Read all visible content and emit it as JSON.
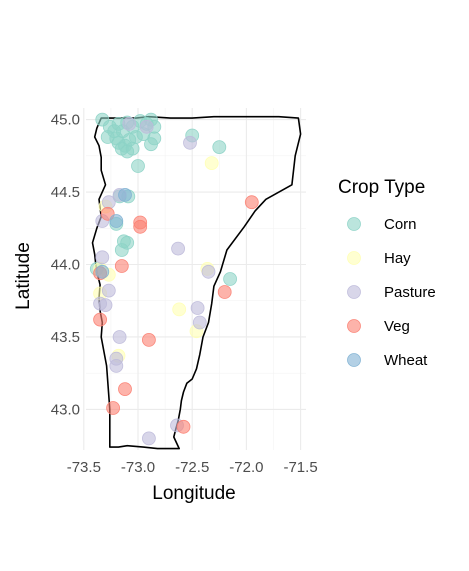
{
  "chart_data": {
    "type": "scatter",
    "title": "",
    "xlabel": "Longitude",
    "ylabel": "Latitude",
    "xlim": [
      -73.48,
      -71.45
    ],
    "ylim": [
      42.72,
      45.08
    ],
    "xticks": [
      -73.5,
      -73.0,
      -72.5,
      -72.0,
      -71.5
    ],
    "xtick_labels": [
      "-73.5",
      "-73.0",
      "-72.5",
      "-72.0",
      "-71.5"
    ],
    "yticks": [
      43.0,
      43.5,
      44.0,
      44.5,
      45.0
    ],
    "ytick_labels": [
      "43.0",
      "43.5",
      "44.0",
      "44.5",
      "45.0"
    ],
    "grid": true,
    "legend": {
      "title": "Crop Type",
      "position": "right"
    },
    "colors": {
      "Corn": "#8dd3c7",
      "Hay": "#ffffb3",
      "Pasture": "#bebada",
      "Veg": "#fb8072",
      "Wheat": "#80b1d3"
    },
    "boundary": {
      "lon": [
        -73.34,
        -73.26,
        -73.17,
        -73.12,
        -73.02,
        -72.9,
        -72.7,
        -72.5,
        -72.3,
        -72.0,
        -71.7,
        -71.52,
        -71.5,
        -71.55,
        -71.58,
        -71.82,
        -71.92,
        -72.02,
        -72.18,
        -72.24,
        -72.3,
        -72.32,
        -72.35,
        -72.4,
        -72.43,
        -72.46,
        -72.5,
        -72.55,
        -72.58,
        -72.6,
        -72.61,
        -72.63,
        -72.65,
        -72.67,
        -72.62,
        -72.7,
        -72.82,
        -72.95,
        -73.1,
        -73.18,
        -73.26,
        -73.26,
        -73.29,
        -73.34,
        -73.33,
        -73.35,
        -73.36,
        -73.35,
        -73.37,
        -73.39,
        -73.4,
        -73.42,
        -73.38,
        -73.34,
        -73.36,
        -73.3,
        -73.34,
        -73.34,
        -73.36,
        -73.4,
        -73.38,
        -73.34
      ],
      "lat": [
        45.01,
        45.01,
        45.01,
        45.01,
        45.01,
        45.02,
        45.01,
        45.01,
        45.02,
        45.02,
        45.02,
        45.01,
        44.9,
        44.75,
        44.55,
        44.45,
        44.37,
        44.26,
        44.1,
        43.95,
        43.85,
        43.73,
        43.6,
        43.5,
        43.38,
        43.28,
        43.21,
        43.18,
        43.12,
        43.06,
        43.0,
        42.92,
        42.87,
        42.81,
        42.73,
        42.73,
        42.73,
        42.74,
        42.75,
        42.74,
        42.74,
        43.0,
        43.3,
        43.5,
        43.6,
        43.68,
        43.77,
        43.86,
        43.92,
        44.0,
        44.07,
        44.15,
        44.25,
        44.33,
        44.45,
        44.55,
        44.65,
        44.74,
        44.82,
        44.88,
        44.94,
        45.01
      ]
    },
    "series": [
      {
        "name": "Corn",
        "points": [
          [
            -73.33,
            45.0
          ],
          [
            -73.26,
            44.95
          ],
          [
            -73.22,
            44.92
          ],
          [
            -73.18,
            44.97
          ],
          [
            -73.14,
            44.92
          ],
          [
            -73.1,
            44.98
          ],
          [
            -73.05,
            44.95
          ],
          [
            -72.98,
            44.99
          ],
          [
            -72.92,
            44.97
          ],
          [
            -72.88,
            45.0
          ],
          [
            -72.85,
            44.95
          ],
          [
            -72.85,
            44.87
          ],
          [
            -72.88,
            44.83
          ],
          [
            -72.95,
            44.9
          ],
          [
            -73.02,
            44.88
          ],
          [
            -73.08,
            44.86
          ],
          [
            -73.12,
            44.82
          ],
          [
            -73.18,
            44.84
          ],
          [
            -73.2,
            44.87
          ],
          [
            -73.28,
            44.88
          ],
          [
            -73.15,
            44.8
          ],
          [
            -73.1,
            44.78
          ],
          [
            -73.05,
            44.8
          ],
          [
            -73.0,
            44.68
          ],
          [
            -73.09,
            44.47
          ],
          [
            -73.17,
            44.47
          ],
          [
            -73.2,
            44.28
          ],
          [
            -73.13,
            44.16
          ],
          [
            -73.1,
            44.15
          ],
          [
            -73.15,
            44.1
          ],
          [
            -73.38,
            43.97
          ],
          [
            -72.5,
            44.89
          ],
          [
            -72.25,
            44.81
          ],
          [
            -72.15,
            43.9
          ]
        ]
      },
      {
        "name": "Hay",
        "points": [
          [
            -73.3,
            44.4
          ],
          [
            -73.35,
            43.97
          ],
          [
            -73.27,
            43.93
          ],
          [
            -73.35,
            43.8
          ],
          [
            -73.18,
            43.37
          ],
          [
            -72.32,
            44.7
          ],
          [
            -72.62,
            43.69
          ],
          [
            -72.46,
            43.54
          ],
          [
            -72.36,
            43.97
          ]
        ]
      },
      {
        "name": "Pasture",
        "points": [
          [
            -73.08,
            44.97
          ],
          [
            -72.92,
            44.95
          ],
          [
            -72.52,
            44.84
          ],
          [
            -73.17,
            44.48
          ],
          [
            -73.27,
            44.43
          ],
          [
            -73.33,
            44.3
          ],
          [
            -73.33,
            44.05
          ],
          [
            -73.27,
            43.82
          ],
          [
            -73.35,
            43.73
          ],
          [
            -73.3,
            43.72
          ],
          [
            -73.17,
            43.5
          ],
          [
            -73.2,
            43.35
          ],
          [
            -73.2,
            43.3
          ],
          [
            -72.63,
            44.11
          ],
          [
            -72.45,
            43.7
          ],
          [
            -72.43,
            43.6
          ],
          [
            -72.35,
            43.95
          ],
          [
            -72.64,
            42.89
          ],
          [
            -72.9,
            42.8
          ]
        ]
      },
      {
        "name": "Veg",
        "points": [
          [
            -73.28,
            44.35
          ],
          [
            -72.98,
            44.29
          ],
          [
            -72.98,
            44.26
          ],
          [
            -73.15,
            43.99
          ],
          [
            -73.35,
            43.94
          ],
          [
            -73.35,
            43.62
          ],
          [
            -72.9,
            43.48
          ],
          [
            -73.12,
            43.14
          ],
          [
            -73.23,
            43.01
          ],
          [
            -72.58,
            42.88
          ],
          [
            -71.95,
            44.43
          ],
          [
            -72.2,
            43.81
          ]
        ]
      },
      {
        "name": "Wheat",
        "points": [
          [
            -73.33,
            43.95
          ],
          [
            -73.12,
            44.48
          ],
          [
            -73.2,
            44.3
          ]
        ]
      }
    ]
  }
}
